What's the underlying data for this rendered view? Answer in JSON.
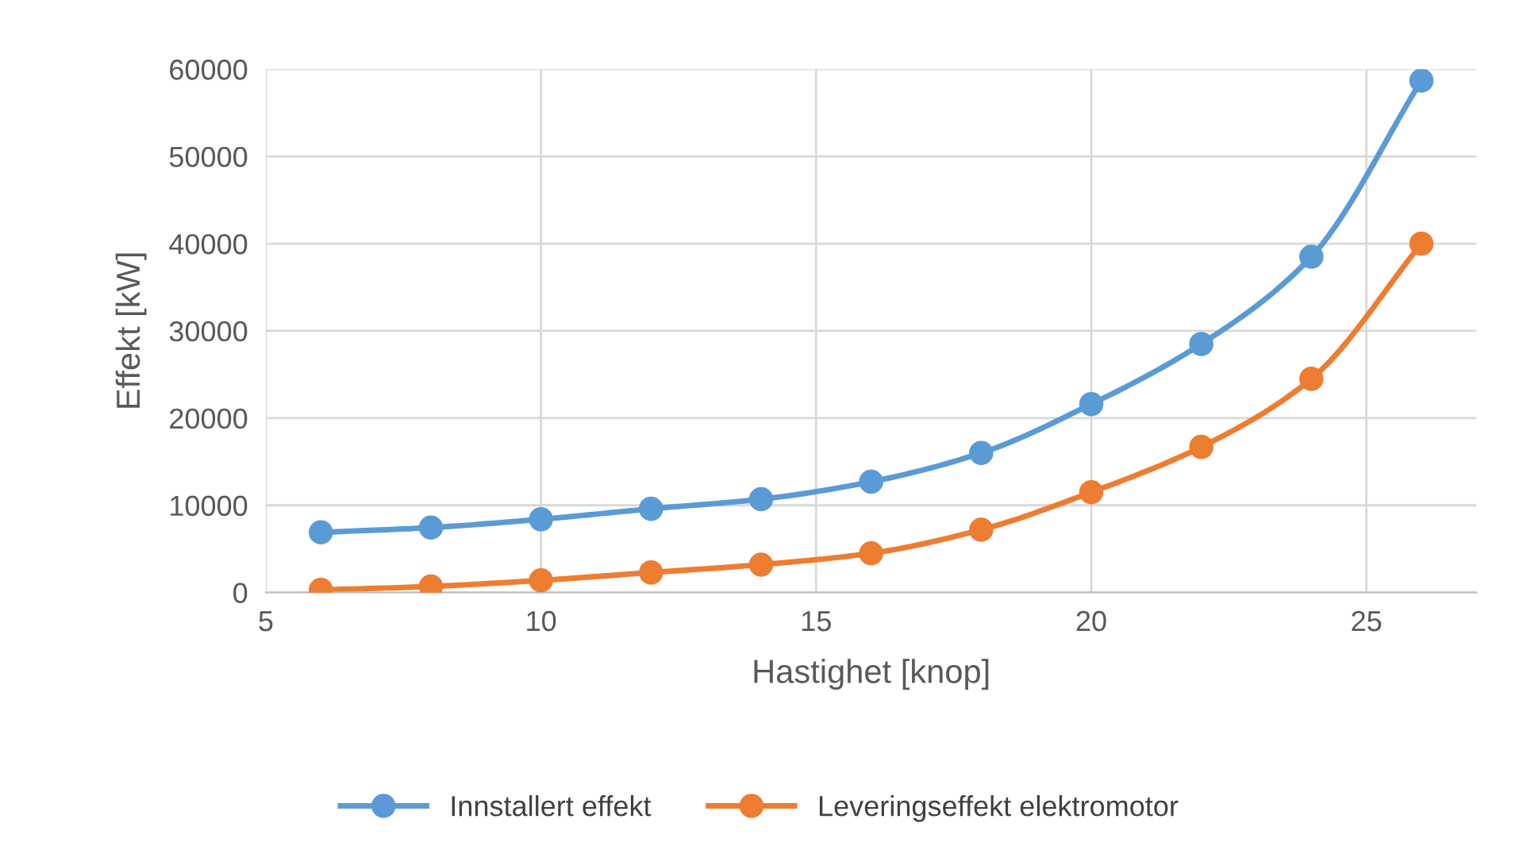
{
  "chart_data": {
    "type": "line",
    "xlabel": "Hastighet [knop]",
    "ylabel": "Effekt [kW]",
    "x": [
      6,
      8,
      10,
      12,
      14,
      16,
      18,
      20,
      22,
      24,
      26
    ],
    "series": [
      {
        "name": "Innstallert effekt",
        "color": "#5b9bd5",
        "values": [
          6900,
          7450,
          8400,
          9600,
          10700,
          12700,
          16000,
          21600,
          28500,
          38500,
          58700
        ]
      },
      {
        "name": "Leveringseffekt elektromotor",
        "color": "#ed7d31",
        "values": [
          300,
          700,
          1400,
          2300,
          3200,
          4500,
          7200,
          11500,
          16700,
          24500,
          40000
        ]
      }
    ],
    "xlim": [
      5,
      27
    ],
    "xticks": [
      5,
      10,
      15,
      20,
      25
    ],
    "ylim": [
      0,
      60000
    ],
    "yticks": [
      0,
      10000,
      20000,
      30000,
      40000,
      50000,
      60000
    ],
    "grid": true,
    "legend": "bottom",
    "marker": "circle",
    "line_style": "solid"
  }
}
